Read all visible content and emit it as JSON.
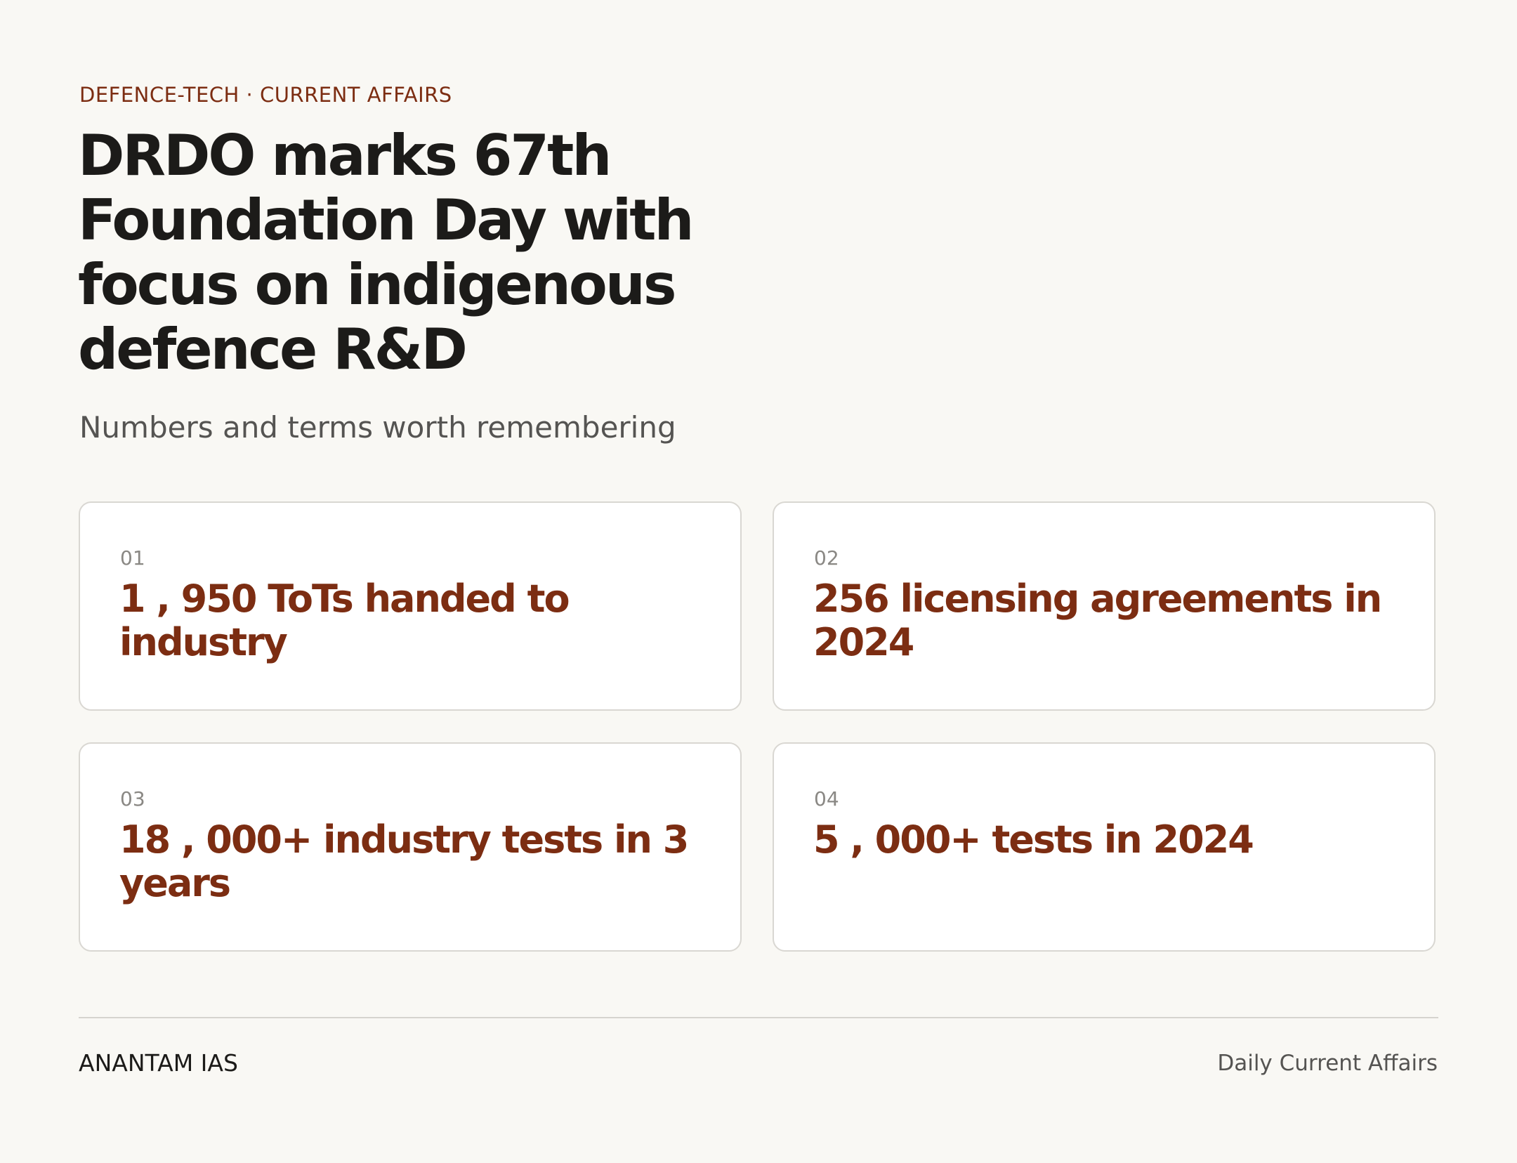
{
  "header": {
    "kicker": "DEFENCE-TECH · CURRENT AFFAIRS",
    "title": "DRDO marks 67th Foundation Day with focus on indigenous defence R&D",
    "subtitle": "Numbers and terms worth remembering"
  },
  "cards": [
    {
      "number": "01",
      "text": "1 , 950 ToTs handed to industry"
    },
    {
      "number": "02",
      "text": "256 licensing agreements in 2024"
    },
    {
      "number": "03",
      "text": "18 , 000+ industry tests in 3 years"
    },
    {
      "number": "04",
      "text": "5 , 000+ tests in 2024"
    }
  ],
  "footer": {
    "brand": "ANANTAM IAS",
    "tagline": "Daily Current Affairs"
  }
}
